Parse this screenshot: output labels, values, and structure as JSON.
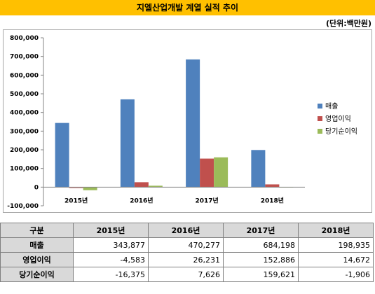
{
  "title": "지엘산업개발 계열 실적 추이",
  "unit": "(단위:백만원)",
  "colors": {
    "title_bg": "#ffc000",
    "sales": "#4f81bd",
    "op": "#c0504d",
    "net": "#9bbb59"
  },
  "chart_data": {
    "type": "bar",
    "categories": [
      "2015년",
      "2016년",
      "2017년",
      "2018년"
    ],
    "series": [
      {
        "name": "매출",
        "values": [
          343877,
          470277,
          684198,
          198935
        ]
      },
      {
        "name": "영업이익",
        "values": [
          -4583,
          26231,
          152886,
          14672
        ]
      },
      {
        "name": "당기순이익",
        "values": [
          -16375,
          7626,
          159621,
          -1906
        ]
      }
    ],
    "ylim": [
      -100000,
      800000
    ],
    "yticks": [
      "-100,000",
      "0",
      "100,000",
      "200,000",
      "300,000",
      "400,000",
      "500,000",
      "600,000",
      "700,000",
      "800,000"
    ],
    "ytick_values": [
      -100000,
      0,
      100000,
      200000,
      300000,
      400000,
      500000,
      600000,
      700000,
      800000
    ],
    "legend_position": "right",
    "grid": false
  },
  "table": {
    "header": [
      "구분",
      "2015년",
      "2016년",
      "2017년",
      "2018년"
    ],
    "rows": [
      {
        "label": "매출",
        "values": [
          "343,877",
          "470,277",
          "684,198",
          "198,935"
        ]
      },
      {
        "label": "영업이익",
        "values": [
          "-4,583",
          "26,231",
          "152,886",
          "14,672"
        ]
      },
      {
        "label": "당기순이익",
        "values": [
          "-16,375",
          "7,626",
          "159,621",
          "-1,906"
        ]
      }
    ]
  }
}
